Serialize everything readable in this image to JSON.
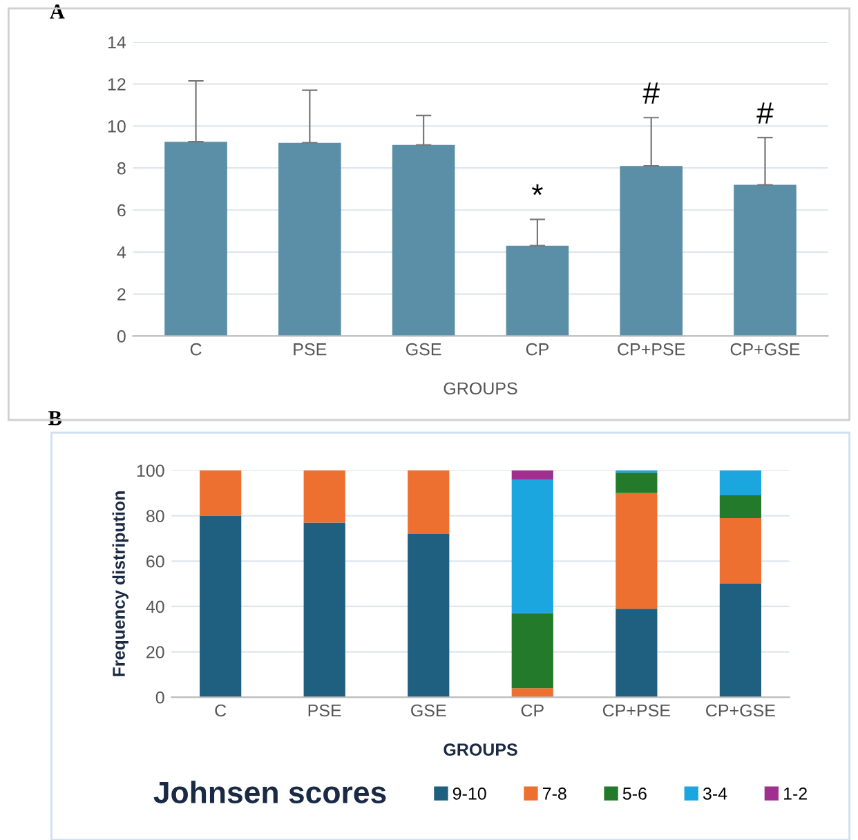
{
  "chart_data": [
    {
      "type": "bar",
      "xlabel": "GROUPS",
      "categories": [
        "C",
        "PSE",
        "GSE",
        "CP",
        "CP+PSE",
        "CP+GSE"
      ],
      "values": [
        9.25,
        9.2,
        9.1,
        4.3,
        8.1,
        7.2
      ],
      "color": "#5b8fa8",
      "errors": [
        [
          9.25,
          12.15
        ],
        [
          9.2,
          11.7
        ],
        [
          9.1,
          10.5
        ],
        [
          4.3,
          5.55
        ],
        [
          8.1,
          10.4
        ],
        [
          7.2,
          9.45
        ]
      ],
      "ylim": [
        0,
        14
      ],
      "yticks": [
        0,
        2,
        4,
        6,
        8,
        10,
        12,
        14
      ],
      "grid": "y",
      "legend": false,
      "annotations": [
        "A",
        "*",
        "#",
        "#"
      ]
    },
    {
      "type": "bar",
      "stacked": true,
      "xlabel": "GROUPS",
      "ylabel": "Frequency distripution",
      "legend_title": "Johnsen scores",
      "categories": [
        "C",
        "PSE",
        "GSE",
        "CP",
        "CP+PSE",
        "CP+GSE"
      ],
      "ylim": [
        0,
        100
      ],
      "yticks": [
        0,
        20,
        40,
        60,
        80,
        100
      ],
      "grid": "y",
      "legend": "bottom",
      "annotations": [
        "B"
      ],
      "series": [
        {
          "name": "9-10",
          "color": "#1f5f80",
          "values": [
            80,
            77,
            72,
            0,
            39,
            50
          ]
        },
        {
          "name": "7-8",
          "color": "#ee7030",
          "values": [
            20,
            23,
            28,
            4,
            51,
            29
          ]
        },
        {
          "name": "5-6",
          "color": "#237a2a",
          "values": [
            0,
            0,
            0,
            33,
            9,
            10
          ]
        },
        {
          "name": "3-4",
          "color": "#1ca6e0",
          "values": [
            0,
            0,
            0,
            59,
            1,
            11
          ]
        },
        {
          "name": "1-2",
          "color": "#a0308f",
          "values": [
            0,
            0,
            0,
            4,
            0,
            0
          ]
        }
      ]
    }
  ]
}
